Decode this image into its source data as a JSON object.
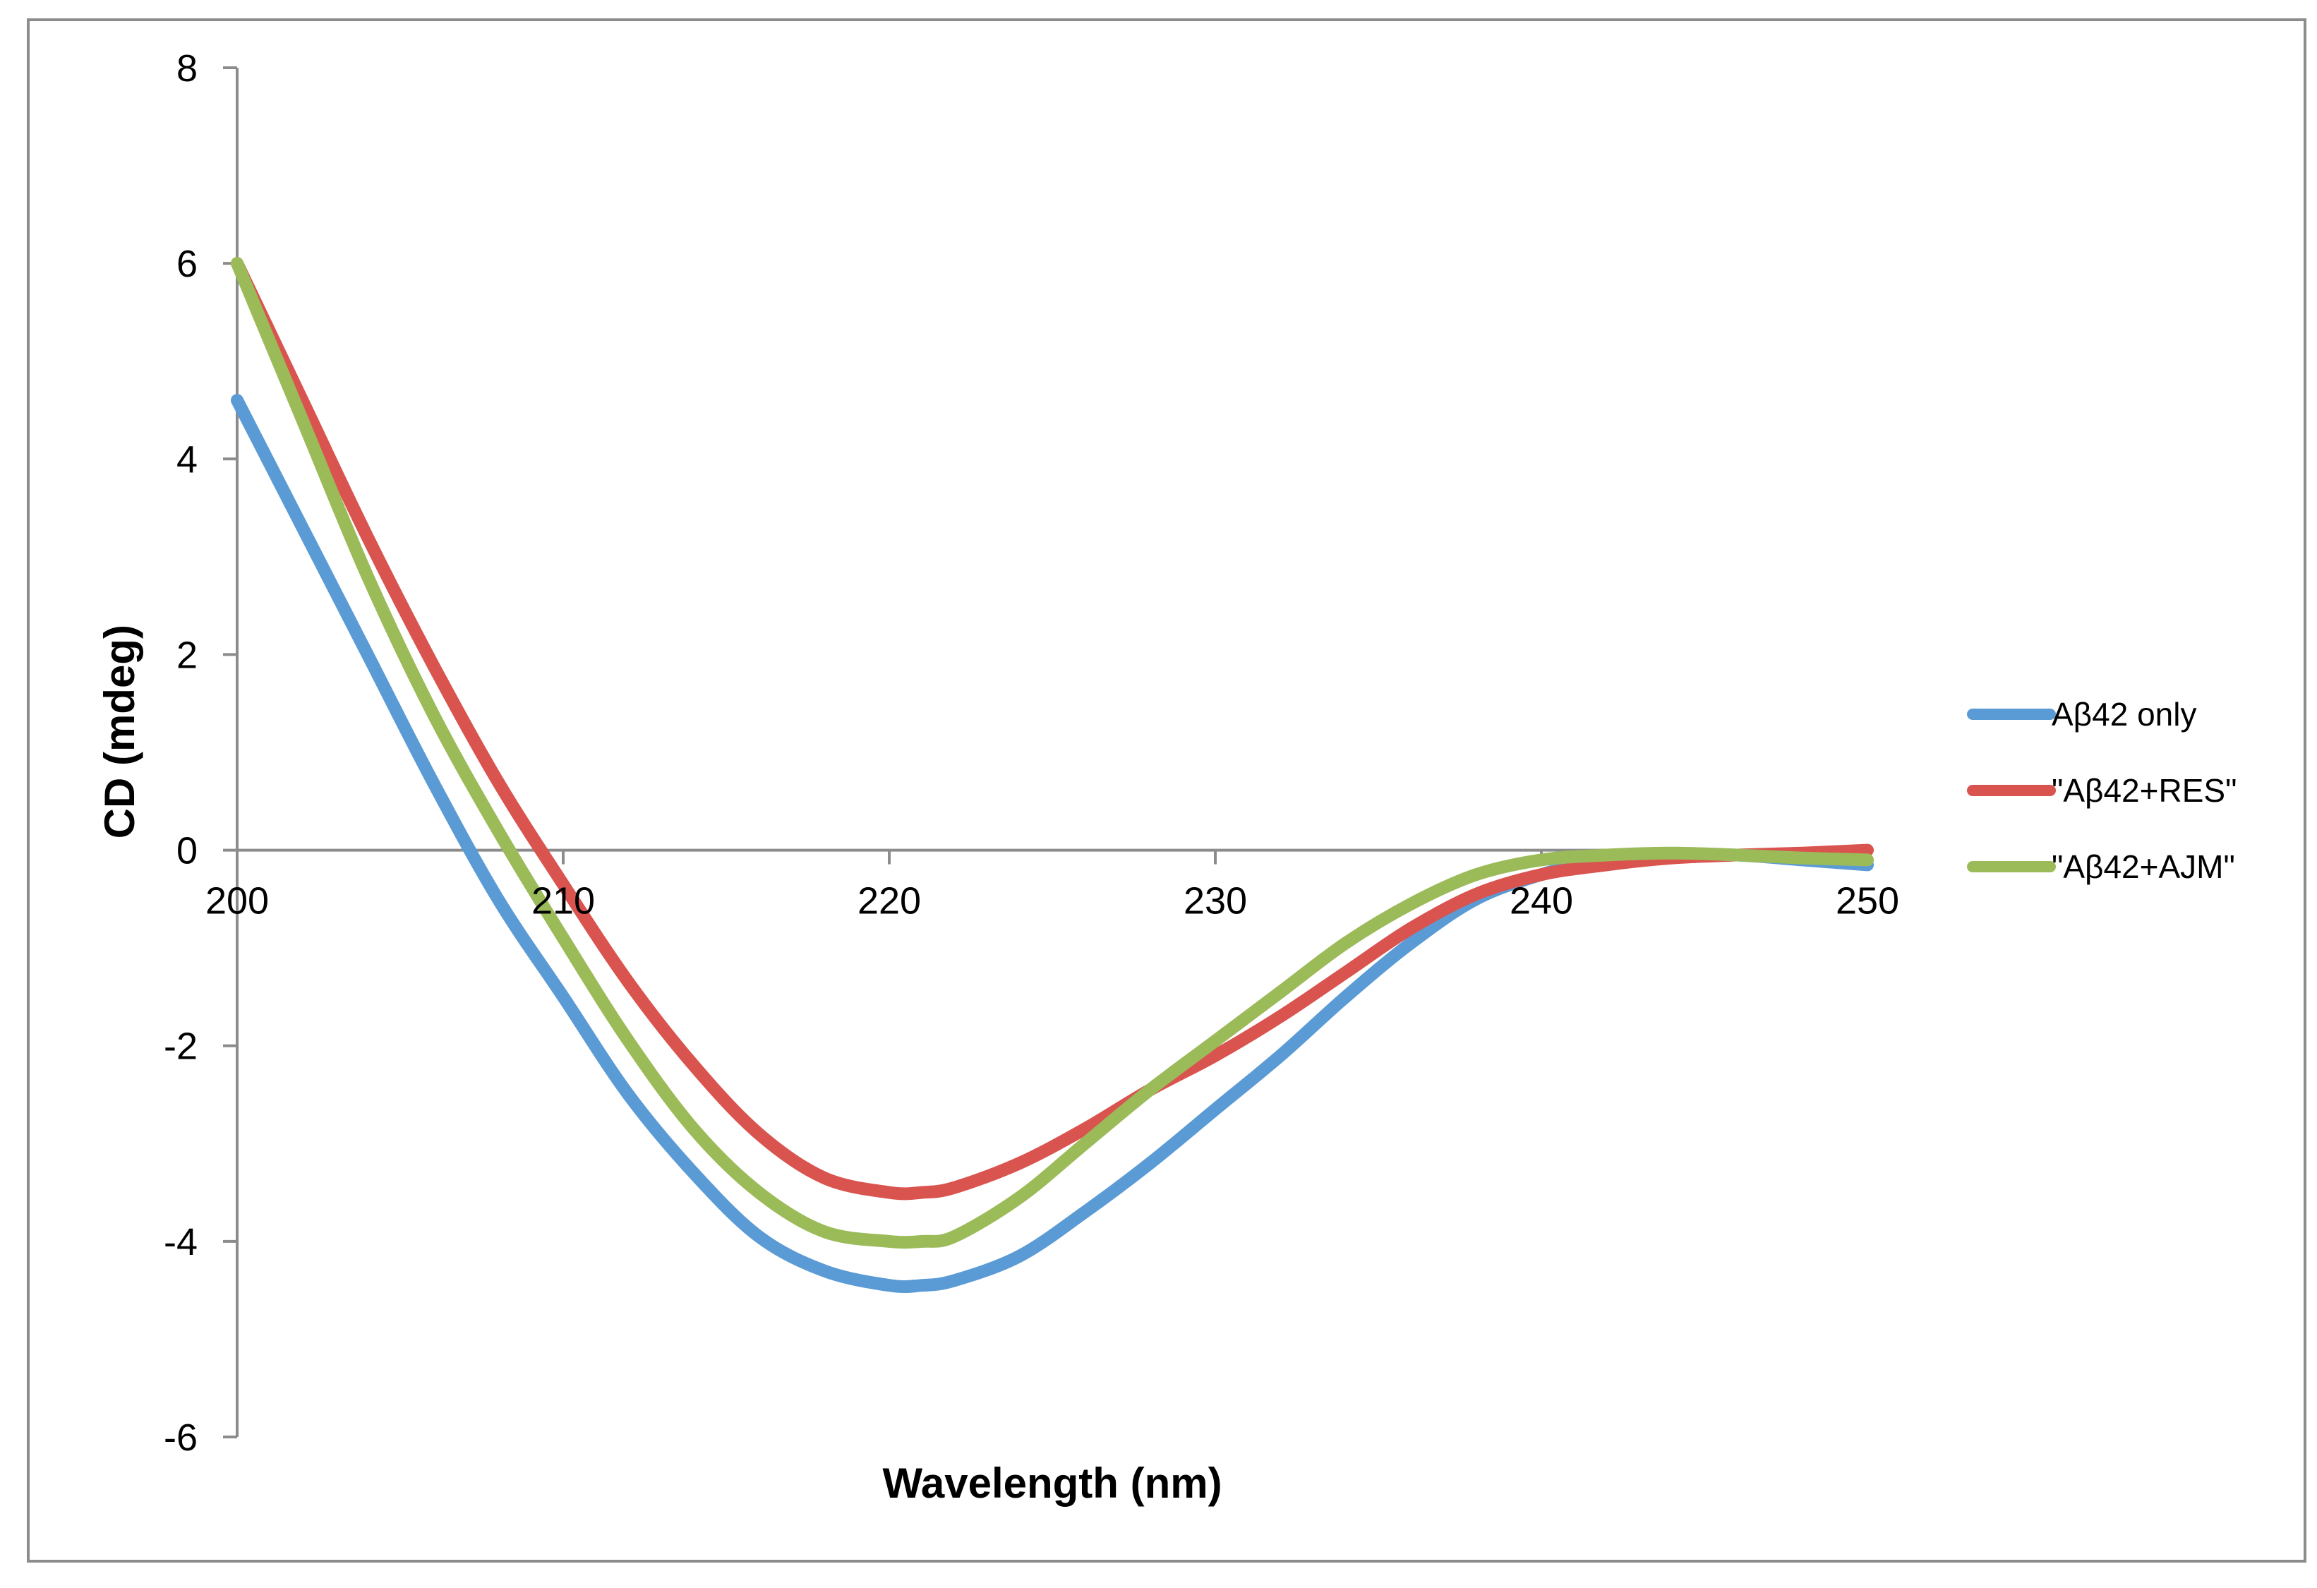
{
  "chart_data": {
    "type": "line",
    "title": "",
    "xlabel": "Wavelength (nm)",
    "ylabel": "CD (mdeg)",
    "xlim": [
      200,
      250
    ],
    "ylim": [
      -6,
      8
    ],
    "xticks": [
      200,
      210,
      220,
      230,
      240,
      250
    ],
    "yticks": [
      -6,
      -4,
      -2,
      0,
      2,
      4,
      6,
      8
    ],
    "x_tick_labels": [
      "200",
      "210",
      "220",
      "230",
      "240",
      "250"
    ],
    "y_tick_labels": [
      "-6",
      "-4",
      "-2",
      "0",
      "2",
      "4",
      "6",
      "8"
    ],
    "grid": false,
    "legend_position": "right",
    "x": [
      200,
      202,
      204,
      206,
      208,
      210,
      212,
      214,
      216,
      218,
      220,
      221,
      222,
      224,
      226,
      228,
      230,
      232,
      234,
      236,
      238,
      240,
      242,
      244,
      246,
      248,
      250
    ],
    "series": [
      {
        "name": "Aβ42 only",
        "color": "#5b9bd5",
        "values": [
          4.6,
          3.3,
          2.0,
          0.7,
          -0.5,
          -1.5,
          -2.5,
          -3.3,
          -3.95,
          -4.3,
          -4.45,
          -4.45,
          -4.4,
          -4.15,
          -3.7,
          -3.2,
          -2.65,
          -2.1,
          -1.5,
          -0.95,
          -0.5,
          -0.25,
          -0.08,
          -0.05,
          -0.05,
          -0.1,
          -0.15
        ]
      },
      {
        "name": "\"Aβ42+RES\"",
        "color": "#d9534f",
        "values": [
          6.0,
          4.6,
          3.2,
          1.9,
          0.7,
          -0.35,
          -1.35,
          -2.2,
          -2.9,
          -3.35,
          -3.5,
          -3.5,
          -3.45,
          -3.2,
          -2.85,
          -2.45,
          -2.1,
          -1.7,
          -1.25,
          -0.8,
          -0.45,
          -0.25,
          -0.15,
          -0.08,
          -0.05,
          -0.03,
          0.0
        ]
      },
      {
        "name": "\"Aβ42+AJM\"",
        "color": "#9bbb59",
        "values": [
          6.0,
          4.4,
          2.8,
          1.4,
          0.2,
          -0.9,
          -1.95,
          -2.85,
          -3.5,
          -3.9,
          -4.0,
          -4.0,
          -3.95,
          -3.55,
          -3.0,
          -2.45,
          -1.95,
          -1.45,
          -0.95,
          -0.55,
          -0.25,
          -0.1,
          -0.05,
          -0.03,
          -0.05,
          -0.08,
          -0.1
        ]
      }
    ]
  }
}
